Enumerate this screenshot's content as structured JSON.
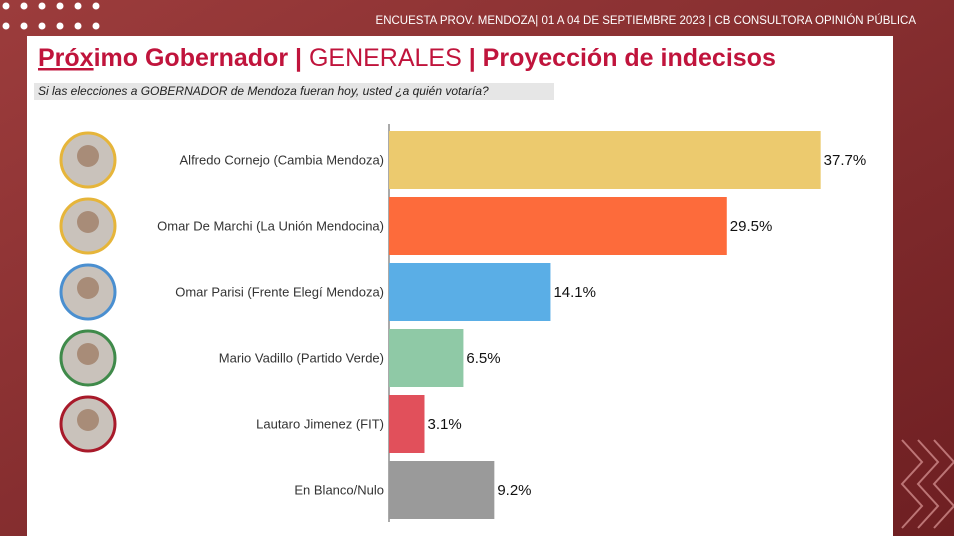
{
  "header": "ENCUESTA PROV. MENDOZA| 01 A 04 DE SEPTIEMBRE 2023 | CB CONSULTORA OPINIÓN PÚBLICA",
  "chart_data": {
    "type": "bar",
    "orientation": "horizontal",
    "title": [
      "Próx",
      "imo Gobernador | ",
      "GENERALES",
      " | Proyección de indecisos"
    ],
    "subtitle": "Si las elecciones a GOBERNADOR de Mendoza fueran hoy, usted ¿a quién votaría?",
    "categories": [
      "Alfredo Cornejo (Cambia Mendoza)",
      "Omar De Marchi (La Unión Mendocina)",
      "Omar Parisi (Frente Elegí Mendoza)",
      "Mario Vadillo (Partido Verde)",
      "Lautaro Jimenez (FIT)",
      "En Blanco/Nulo"
    ],
    "values": [
      37.7,
      29.5,
      14.1,
      6.5,
      3.1,
      9.2
    ],
    "value_labels": [
      "37.7%",
      "29.5%",
      "14.1%",
      "6.5%",
      "3.1%",
      "9.2%"
    ],
    "colors": [
      "#ecca6e",
      "#fd6b3b",
      "#5aaee6",
      "#8fc9a6",
      "#e1505b",
      "#9a9a9a"
    ],
    "xlim": [
      0,
      40
    ]
  }
}
